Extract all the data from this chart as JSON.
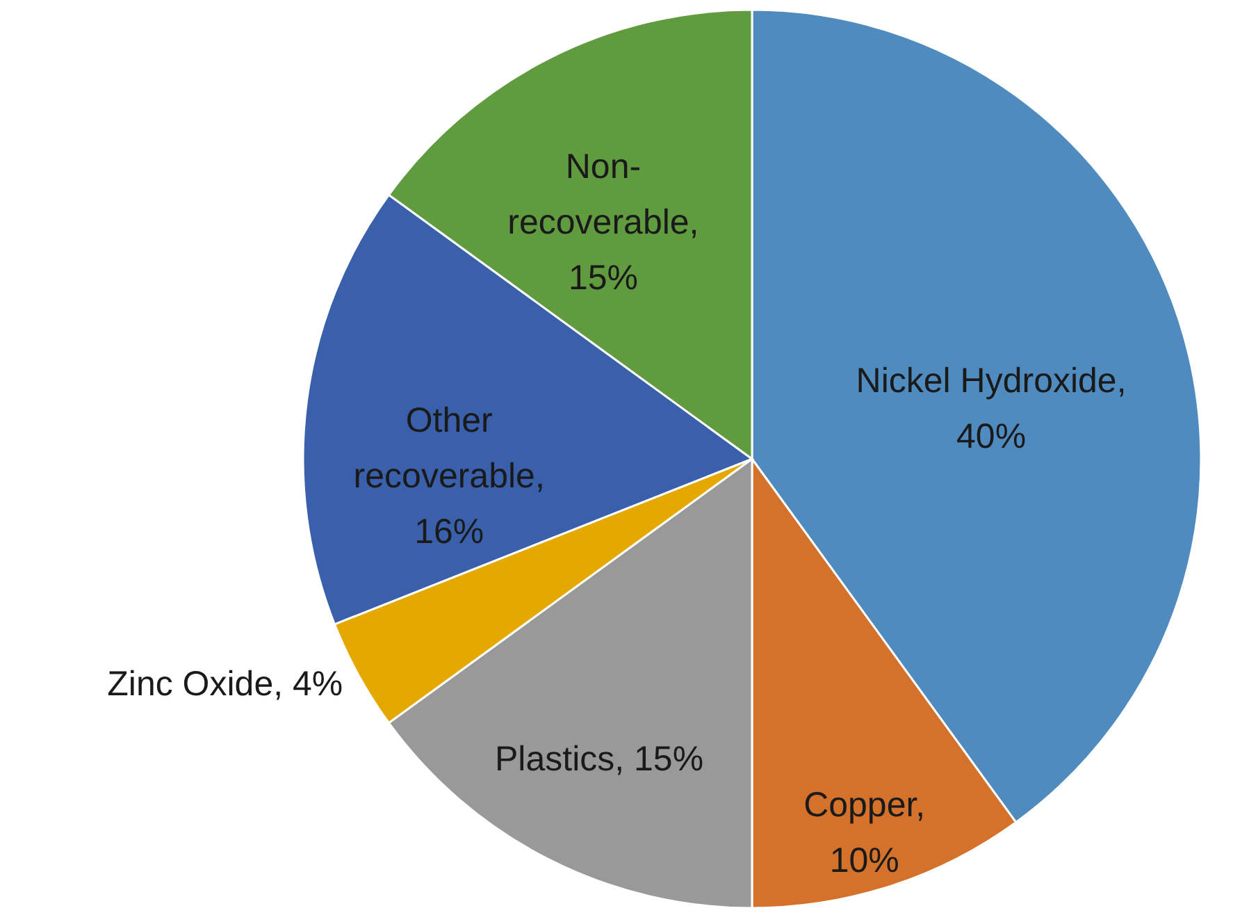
{
  "chart_data": {
    "type": "pie",
    "categories": [
      "Nickel Hydroxide",
      "Copper",
      "Plastics",
      "Zinc Oxide",
      "Other recoverable",
      "Non-recoverable"
    ],
    "values": [
      40,
      10,
      15,
      4,
      16,
      15
    ],
    "colors": [
      "#4f8bbf",
      "#d4712b",
      "#999999",
      "#e4a800",
      "#3a60ab",
      "#619b3f"
    ],
    "value_labels": [
      ", 40%",
      ", 10%",
      ", 15%",
      ", 4%",
      ", 16%",
      ", 15%"
    ]
  }
}
